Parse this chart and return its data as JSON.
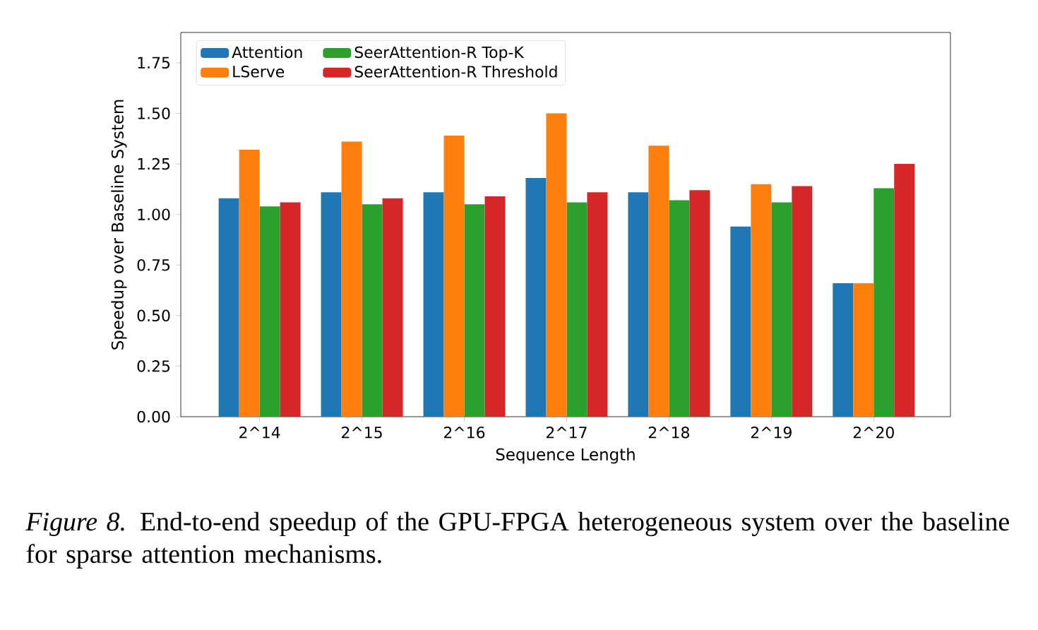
{
  "chart_data": {
    "type": "bar",
    "xlabel": "Sequence Length",
    "ylabel": "Speedup over Baseline System",
    "categories": [
      "2^14",
      "2^15",
      "2^16",
      "2^17",
      "2^18",
      "2^19",
      "2^20"
    ],
    "series": [
      {
        "name": "Attention",
        "color": "#1f77b4",
        "values": [
          1.08,
          1.11,
          1.11,
          1.18,
          1.11,
          0.94,
          0.66
        ]
      },
      {
        "name": "LServe",
        "color": "#ff7f0e",
        "values": [
          1.32,
          1.36,
          1.39,
          1.5,
          1.34,
          1.15,
          0.66
        ]
      },
      {
        "name": "SeerAttention-R Top-K",
        "color": "#2ca02c",
        "values": [
          1.04,
          1.05,
          1.05,
          1.06,
          1.07,
          1.06,
          1.13
        ]
      },
      {
        "name": "SeerAttention-R Threshold",
        "color": "#d62728",
        "values": [
          1.06,
          1.08,
          1.09,
          1.11,
          1.12,
          1.14,
          1.25
        ]
      }
    ],
    "ylim": [
      0,
      1.9
    ],
    "yticks": [
      {
        "value": 0,
        "label": "0.00"
      },
      {
        "value": 0.25,
        "label": "0.25"
      },
      {
        "value": 0.5,
        "label": "0.50"
      },
      {
        "value": 0.75,
        "label": "0.75"
      },
      {
        "value": 1,
        "label": "1.00"
      },
      {
        "value": 1.25,
        "label": "1.25"
      },
      {
        "value": 1.5,
        "label": "1.50"
      },
      {
        "value": 1.75,
        "label": "1.75"
      }
    ],
    "legend": "top left",
    "grid": false,
    "annotations": [
      "*Figure 8.* End-to-end speedup of the GPU-FPGA heterogeneous system over the baseline for sparse attention mechanisms."
    ]
  }
}
